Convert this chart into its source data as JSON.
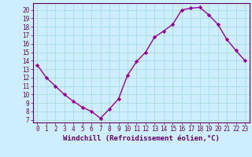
{
  "hours": [
    0,
    1,
    2,
    3,
    4,
    5,
    6,
    7,
    8,
    9,
    10,
    11,
    12,
    13,
    14,
    15,
    16,
    17,
    18,
    19,
    20,
    21,
    22,
    23
  ],
  "values": [
    13.5,
    12.0,
    11.0,
    10.0,
    9.2,
    8.5,
    8.0,
    7.2,
    8.3,
    9.5,
    12.3,
    13.9,
    15.0,
    16.8,
    17.5,
    18.3,
    20.0,
    20.2,
    20.3,
    19.4,
    18.3,
    16.5,
    15.2,
    14.0
  ],
  "line_color": "#990099",
  "marker": "D",
  "marker_size": 2.2,
  "bg_color": "#cceeff",
  "grid_color": "#aadddd",
  "ylabel_values": [
    7,
    8,
    9,
    10,
    11,
    12,
    13,
    14,
    15,
    16,
    17,
    18,
    19,
    20
  ],
  "ylim": [
    6.7,
    20.8
  ],
  "xlim": [
    -0.5,
    23.5
  ],
  "xlabel": "Windchill (Refroidissement éolien,°C)",
  "axis_color": "#660066",
  "font_color": "#660066",
  "tick_font_size": 5.5,
  "xlabel_size": 6.5,
  "line_width": 1.0,
  "spine_color": "#660066"
}
